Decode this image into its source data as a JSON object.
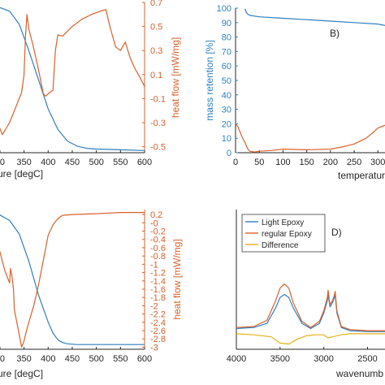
{
  "colors": {
    "blue": "#2f7fbf",
    "orange": "#d9602b",
    "yellow": "#e2b21a",
    "axis": "#262626"
  },
  "chart_data": [
    {
      "id": "A",
      "type": "line",
      "xlabel": "ure [degC]",
      "ylabel_right": "heat flow [mW/mg]",
      "x_ticks": [
        "00",
        "350",
        "400",
        "450",
        "500",
        "550",
        "600"
      ],
      "y2_ticks": [
        "0.7",
        "0.5",
        "0.3",
        "0.1",
        "-0.1",
        "-0.3",
        "-0.5"
      ],
      "xlim": [
        290,
        600
      ],
      "y2lim": [
        -0.55,
        0.7
      ],
      "series": [
        {
          "color": "blue",
          "axis": "left",
          "x": [
            290,
            300,
            320,
            340,
            360,
            380,
            400,
            420,
            440,
            460,
            480,
            500,
            550,
            600
          ],
          "y": [
            100,
            99.5,
            97,
            88,
            70,
            50,
            30,
            16,
            8,
            4.5,
            3,
            2.5,
            2,
            1.5
          ]
        },
        {
          "color": "orange",
          "axis": "right",
          "x": [
            290,
            305,
            320,
            335,
            345,
            350,
            353,
            356,
            360,
            370,
            380,
            390,
            395,
            400,
            410,
            415,
            420,
            430,
            450,
            470,
            490,
            510,
            520,
            525,
            530,
            540,
            550,
            560,
            570,
            580,
            590,
            600
          ],
          "y": [
            -0.25,
            -0.4,
            -0.3,
            -0.15,
            -0.05,
            0.1,
            0.42,
            0.6,
            0.48,
            0.32,
            0.14,
            -0.06,
            -0.08,
            -0.06,
            -0.03,
            0.3,
            0.43,
            0.42,
            0.5,
            0.56,
            0.6,
            0.63,
            0.64,
            0.55,
            0.47,
            0.33,
            0.3,
            0.37,
            0.24,
            0.15,
            0.08,
            0.0
          ]
        }
      ]
    },
    {
      "id": "B",
      "type": "line",
      "label": "B)",
      "xlabel": "temperature",
      "ylabel_left": "mass retention [%]",
      "y_ticks": [
        "100",
        "90",
        "80",
        "70",
        "60",
        "50",
        "40",
        "30",
        "20",
        "10",
        "0"
      ],
      "x_ticks": [
        "0",
        "50",
        "100",
        "150",
        "200",
        "250",
        "300"
      ],
      "xlim": [
        0,
        315
      ],
      "ylim": [
        0,
        100
      ],
      "series": [
        {
          "color": "blue",
          "x": [
            20,
            22,
            25,
            30,
            50,
            100,
            150,
            200,
            250,
            300,
            315
          ],
          "y": [
            99.5,
            97.5,
            96,
            95,
            94,
            93,
            92,
            91,
            90,
            89,
            88
          ]
        },
        {
          "color": "orange",
          "x": [
            0,
            5,
            10,
            15,
            20,
            25,
            30,
            40,
            50,
            75,
            100,
            150,
            200,
            225,
            250,
            275,
            290,
            300,
            315
          ],
          "y": [
            20,
            18,
            14,
            10,
            7,
            3,
            1,
            0.5,
            1,
            1.5,
            2.5,
            2,
            2.5,
            4,
            6,
            10,
            14,
            17,
            19
          ]
        }
      ]
    },
    {
      "id": "C",
      "type": "line",
      "xlabel": "ure [degC]",
      "ylabel_right": "heat flow [mW/mg]",
      "x_ticks": [
        "00",
        "350",
        "400",
        "450",
        "500",
        "550",
        "600"
      ],
      "y2_ticks": [
        "0.2",
        "-0",
        "-0.2",
        "-0.4",
        "-0.6",
        "-0.8",
        "-1",
        "-1.2",
        "-1.4",
        "-1.6",
        "-1.8",
        "-2",
        "-2.2",
        "-2.4",
        "-2.6",
        "-2.8",
        "-3"
      ],
      "xlim": [
        290,
        600
      ],
      "y2lim": [
        -3.05,
        0.32
      ],
      "series": [
        {
          "color": "blue",
          "axis": "left",
          "x": [
            290,
            300,
            320,
            340,
            360,
            380,
            400,
            410,
            420,
            430,
            440,
            460,
            500,
            550,
            600
          ],
          "y": [
            100,
            99,
            95,
            85,
            65,
            40,
            20,
            12,
            7,
            5,
            4,
            3.5,
            3.5,
            3.5,
            3.5
          ]
        },
        {
          "color": "orange",
          "axis": "right",
          "x": [
            290,
            300,
            310,
            315,
            320,
            322,
            325,
            328,
            330,
            340,
            345,
            350,
            355,
            360,
            370,
            380,
            390,
            400,
            410,
            420,
            430,
            450,
            500,
            550,
            600
          ],
          "y": [
            -0.3,
            -0.7,
            -1.15,
            -1.3,
            -1.45,
            -1.1,
            -1.3,
            -1.6,
            -2.1,
            -2.7,
            -3.0,
            -2.85,
            -2.6,
            -2.4,
            -2.0,
            -1.5,
            -0.9,
            -0.3,
            -0.05,
            0.1,
            0.18,
            0.2,
            0.22,
            0.25,
            0.25
          ]
        }
      ]
    },
    {
      "id": "D",
      "type": "line",
      "label": "D)",
      "xlabel": "wavenumb",
      "x_ticks": [
        "4000",
        "3500",
        "3000",
        "2500"
      ],
      "xlim": [
        4000,
        2300
      ],
      "ylim": [
        -0.15,
        1.2
      ],
      "legend": [
        "Light Epoxy",
        "regular Epoxy",
        "Difference"
      ],
      "series": [
        {
          "color": "blue",
          "x": [
            4000,
            3800,
            3650,
            3550,
            3500,
            3450,
            3400,
            3350,
            3250,
            3150,
            3050,
            3000,
            2960,
            2950,
            2930,
            2900,
            2880,
            2870,
            2850,
            2800,
            2700,
            2500,
            2300
          ],
          "y": [
            0.05,
            0.06,
            0.1,
            0.25,
            0.35,
            0.38,
            0.35,
            0.25,
            0.1,
            0.05,
            0.1,
            0.2,
            0.32,
            0.38,
            0.26,
            0.3,
            0.35,
            0.38,
            0.2,
            0.06,
            0.03,
            0.02,
            0.02
          ]
        },
        {
          "color": "orange",
          "x": [
            4000,
            3800,
            3650,
            3550,
            3500,
            3450,
            3400,
            3350,
            3250,
            3150,
            3050,
            3000,
            2960,
            2950,
            2930,
            2900,
            2880,
            2870,
            2850,
            2800,
            2700,
            2500,
            2300
          ],
          "y": [
            0.06,
            0.07,
            0.13,
            0.32,
            0.44,
            0.48,
            0.44,
            0.3,
            0.12,
            0.06,
            0.12,
            0.22,
            0.35,
            0.42,
            0.28,
            0.32,
            0.37,
            0.41,
            0.22,
            0.07,
            0.04,
            0.03,
            0.03
          ]
        },
        {
          "color": "yellow",
          "x": [
            4000,
            3800,
            3600,
            3500,
            3400,
            3300,
            3200,
            3100,
            3000,
            2950,
            2900,
            2850,
            2800,
            2700,
            2500,
            2300
          ],
          "y": [
            0.0,
            -0.01,
            -0.03,
            -0.09,
            -0.1,
            -0.05,
            -0.02,
            -0.01,
            -0.01,
            -0.04,
            -0.03,
            -0.02,
            -0.01,
            0.0,
            0.0,
            0.0
          ]
        }
      ]
    }
  ]
}
